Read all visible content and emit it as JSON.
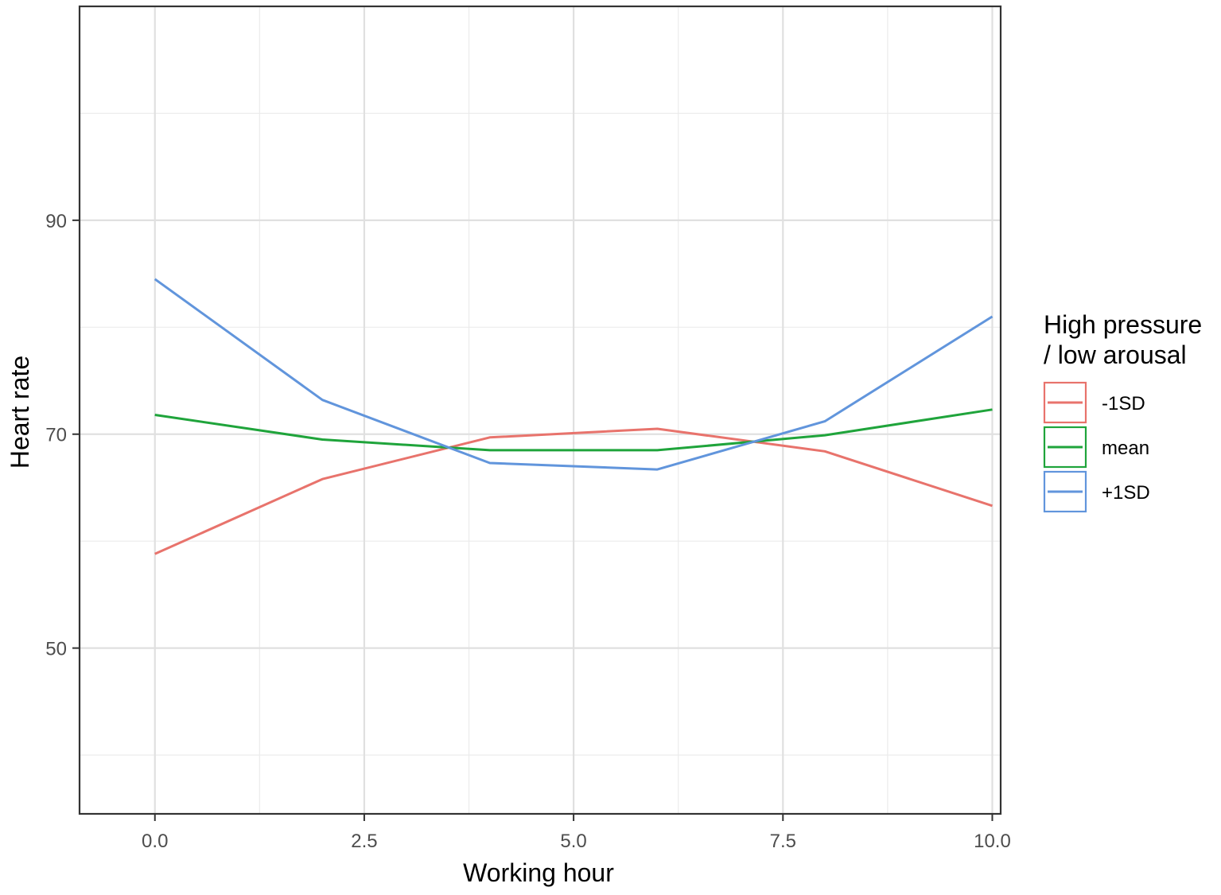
{
  "chart_data": {
    "type": "line",
    "xlabel": "Working hour",
    "ylabel": "Heart rate",
    "xlim": [
      -0.9,
      10.1
    ],
    "ylim": [
      34.5,
      90
    ],
    "ylim_full": [
      34.5,
      110
    ],
    "x_ticks": [
      {
        "value": 0,
        "label": "0.0"
      },
      {
        "value": 2.5,
        "label": "2.5"
      },
      {
        "value": 5,
        "label": "5.0"
      },
      {
        "value": 7.5,
        "label": "7.5"
      },
      {
        "value": 10,
        "label": "10.0"
      }
    ],
    "y_ticks": [
      {
        "value": 50,
        "label": "50"
      },
      {
        "value": 70,
        "label": "70"
      },
      {
        "value": 90,
        "label": "90"
      }
    ],
    "x_minor": [
      1.25,
      3.75,
      6.25,
      8.75
    ],
    "y_minor": [
      40,
      60,
      80,
      100
    ],
    "grid": true,
    "legend": {
      "title_lines": [
        "High pressure",
        "/ low arousal"
      ],
      "position": "right"
    },
    "x": [
      0,
      2,
      4,
      6,
      8,
      10
    ],
    "series": [
      {
        "name": "-1SD",
        "color": "#e8736c",
        "values": [
          58.8,
          65.8,
          69.7,
          70.5,
          68.4,
          63.3
        ]
      },
      {
        "name": "mean",
        "color": "#1fa43b",
        "values": [
          71.8,
          69.5,
          68.5,
          68.5,
          69.9,
          72.3
        ]
      },
      {
        "name": "+1SD",
        "color": "#6195dc",
        "values": [
          84.5,
          73.2,
          67.3,
          66.7,
          71.2,
          81
        ]
      }
    ]
  }
}
